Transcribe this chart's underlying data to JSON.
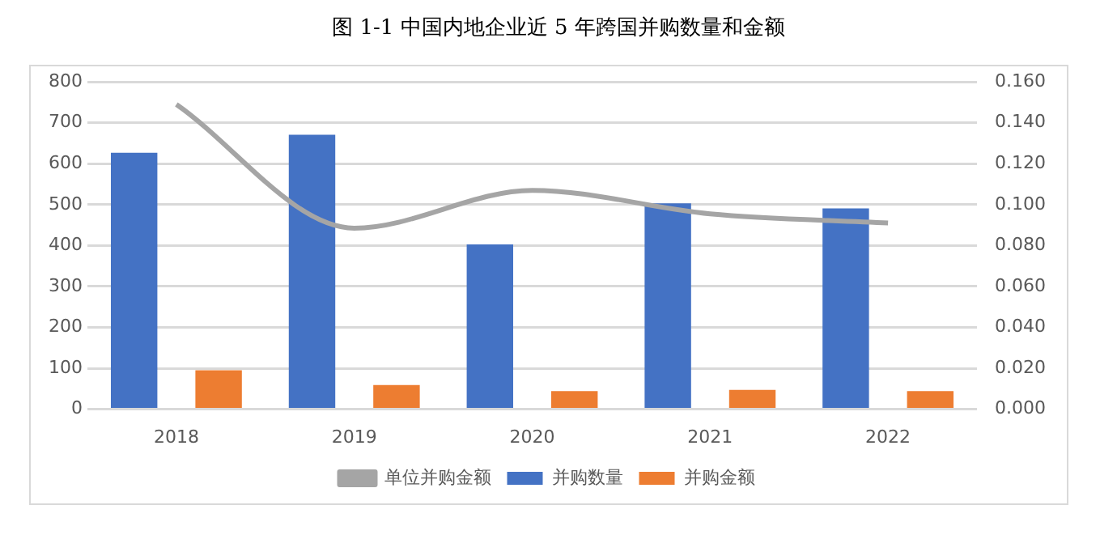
{
  "chart_data": {
    "type": "bar",
    "title": "图 1-1  中国内地企业近 5 年跨国并购数量和金额",
    "categories": [
      "2018",
      "2019",
      "2020",
      "2021",
      "2022"
    ],
    "series": [
      {
        "name": "并购数量",
        "color": "#4472c4",
        "values": [
          627,
          671,
          403,
          503,
          491
        ]
      },
      {
        "name": "并购金额",
        "color": "#ed7d31",
        "values": [
          95,
          59,
          44,
          47,
          44
        ]
      },
      {
        "name": "单位并购金额",
        "type": "line",
        "axis": "y2",
        "color": "#a5a5a5",
        "values": [
          0.149,
          0.0885,
          0.107,
          0.0955,
          0.091
        ]
      }
    ],
    "ylim": [
      0,
      800
    ],
    "yticks": [
      0,
      100,
      200,
      300,
      400,
      500,
      600,
      700,
      800
    ],
    "y2lim": [
      0,
      0.16
    ],
    "y2ticks": [
      {
        "value": 0,
        "label": "0.000"
      },
      {
        "value": 0.02,
        "label": "0.020"
      },
      {
        "value": 0.04,
        "label": "0.040"
      },
      {
        "value": 0.06,
        "label": "0.060"
      },
      {
        "value": 0.08,
        "label": "0.080"
      },
      {
        "value": 0.1,
        "label": "0.100"
      },
      {
        "value": 0.12,
        "label": "0.120"
      },
      {
        "value": 0.14,
        "label": "0.140"
      },
      {
        "value": 0.16,
        "label": "0.160"
      }
    ],
    "grid": "y",
    "legend": "bottom",
    "marker": "none"
  }
}
